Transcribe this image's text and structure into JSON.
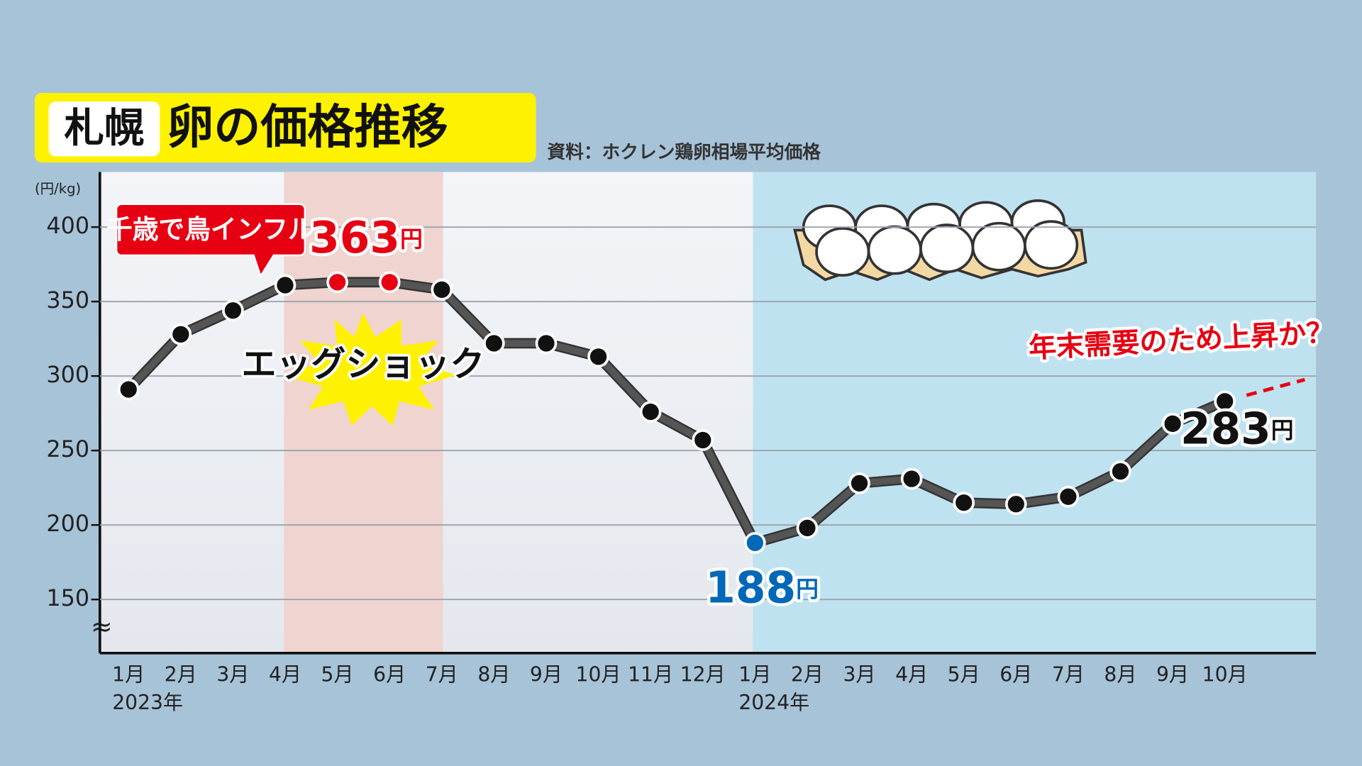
{
  "chart_data": {
    "type": "line",
    "title_place": "札幌",
    "title": "卵の価格推移",
    "source": "資料：ホクレン鶏卵相場平均価格",
    "y_unit": "(円/kg)",
    "axis_break": "≈",
    "categories": [
      "1月",
      "2月",
      "3月",
      "4月",
      "5月",
      "6月",
      "7月",
      "8月",
      "9月",
      "10月",
      "11月",
      "12月",
      "1月",
      "2月",
      "3月",
      "4月",
      "5月",
      "6月",
      "7月",
      "8月",
      "9月",
      "10月"
    ],
    "year_labels": [
      {
        "index": 0,
        "label": "2023年"
      },
      {
        "index": 12,
        "label": "2024年"
      }
    ],
    "series": [
      {
        "name": "卵の価格",
        "color": "#555555",
        "values": [
          291,
          328,
          344,
          361,
          363,
          363,
          358,
          322,
          322,
          313,
          276,
          257,
          188,
          198,
          228,
          231,
          215,
          214,
          219,
          236,
          268,
          283
        ],
        "value_labels": [
          null,
          null,
          null,
          null,
          "363円",
          null,
          null,
          null,
          null,
          null,
          null,
          null,
          "188円",
          null,
          null,
          null,
          null,
          null,
          null,
          null,
          null,
          "283円"
        ],
        "value_label_colors": [
          null,
          null,
          null,
          null,
          "#e60012",
          null,
          null,
          null,
          null,
          null,
          null,
          null,
          "#0068b7",
          null,
          null,
          null,
          null,
          null,
          null,
          null,
          null,
          "#111111"
        ],
        "marker_colors": [
          "#111",
          "#111",
          "#111",
          "#111",
          "#e60012",
          "#e60012",
          "#111",
          "#111",
          "#111",
          "#111",
          "#111",
          "#111",
          "#0068b7",
          "#111",
          "#111",
          "#111",
          "#111",
          "#111",
          "#111",
          "#111",
          "#111",
          "#111"
        ]
      }
    ],
    "annotations": {
      "callout": "千歳で鳥インフル",
      "burst": "エッグショック",
      "forecast": "年末需要のため上昇か？"
    },
    "ylim": [
      114,
      437
    ],
    "yticks": [
      150,
      200,
      250,
      300,
      350,
      400
    ],
    "grid": true
  }
}
